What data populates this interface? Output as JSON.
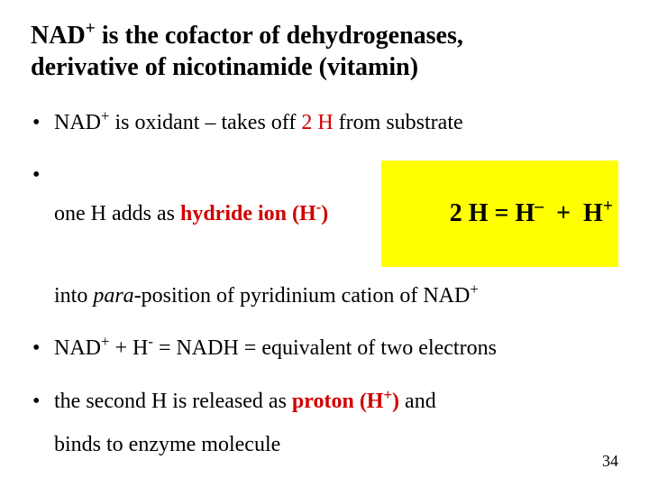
{
  "title": {
    "line1_pre": "NAD",
    "line1_sup": "+",
    "line1_post": " is the cofactor of dehydrogenases,",
    "line2": "derivative of nicotinamide (vitamin)",
    "fontsize": 28,
    "color": "#000000"
  },
  "bullets": {
    "fontsize": 24,
    "body_color": "#000000",
    "red_color": "#d20000",
    "highlight_bg": "#ffff00",
    "items": [
      {
        "kind": "line",
        "parts": {
          "a": "NAD",
          "a_sup": "+",
          "b": " is oxidant – takes off ",
          "c_red": "2 H",
          "d": " from substrate"
        }
      },
      {
        "kind": "eq",
        "left": {
          "a": "one H adds as ",
          "b_red_bold": "hydride ion (H",
          "b_sup": "-",
          "b_tail": ")"
        },
        "equation": {
          "a": "2 H = H",
          "a_sup": "–",
          "b": "  +  H",
          "b_sup": "+",
          "fontsize": 28
        }
      },
      {
        "kind": "cont",
        "parts": {
          "a": "into ",
          "b_ital": "para",
          "c": "-position of  pyridinium cation of NAD",
          "c_sup": "+"
        }
      },
      {
        "kind": "line2",
        "parts": {
          "a": "NAD",
          "a_sup": "+",
          "b": " +  H",
          "b_sup": "-",
          "c": "  =  NADH  =  equivalent of two electrons"
        }
      },
      {
        "kind": "line3",
        "parts": {
          "a": "the second H is released as ",
          "b_red_bold": "proton (H",
          "b_sup": "+",
          "b_tail": ")",
          "c": " and"
        }
      },
      {
        "kind": "cont2",
        "text": "binds to enzyme molecule"
      }
    ]
  },
  "slide_number": "34",
  "background_color": "#ffffff"
}
